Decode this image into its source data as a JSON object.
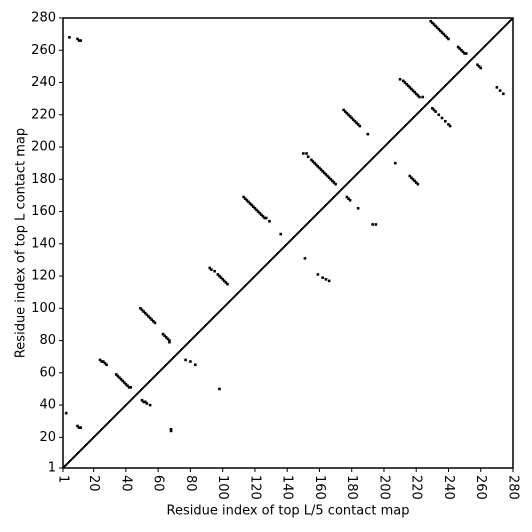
{
  "chart_data": {
    "type": "scatter",
    "x_label": "Residue index of top L/5 contact map",
    "y_label": "Residue index of top L contact map",
    "xlim": [
      1,
      280
    ],
    "ylim": [
      1,
      280
    ],
    "xticks": [
      1,
      20,
      40,
      60,
      80,
      100,
      120,
      140,
      160,
      180,
      200,
      220,
      240,
      260,
      280
    ],
    "yticks": [
      1,
      20,
      40,
      60,
      80,
      100,
      120,
      140,
      160,
      180,
      200,
      220,
      240,
      260,
      280
    ],
    "color": "#000000",
    "diagonal": true,
    "x": [
      5,
      10,
      11,
      12,
      3,
      10,
      11,
      12,
      24,
      25,
      26,
      27,
      28,
      34,
      35,
      36,
      37,
      38,
      39,
      40,
      41,
      42,
      43,
      49,
      50,
      51,
      52,
      53,
      54,
      55,
      56,
      57,
      58,
      63,
      64,
      65,
      66,
      67,
      67,
      50,
      51,
      52,
      53,
      55,
      68,
      68,
      77,
      80,
      83,
      98,
      92,
      93,
      95,
      97,
      98,
      99,
      100,
      101,
      102,
      103,
      113,
      114,
      115,
      116,
      117,
      118,
      119,
      120,
      121,
      122,
      123,
      124,
      125,
      126,
      127,
      129,
      136,
      150,
      152,
      153,
      155,
      156,
      157,
      158,
      159,
      160,
      161,
      162,
      163,
      164,
      165,
      166,
      167,
      168,
      169,
      170,
      175,
      176,
      177,
      178,
      179,
      180,
      181,
      182,
      183,
      184,
      185,
      190,
      210,
      212,
      213,
      214,
      215,
      216,
      217,
      218,
      219,
      220,
      221,
      222,
      224,
      229,
      230,
      231,
      232,
      233,
      234,
      235,
      236,
      237,
      238,
      239,
      240,
      246,
      247,
      248,
      249,
      250,
      251,
      258,
      259,
      260,
      270,
      272,
      274,
      151,
      159,
      162,
      164,
      166,
      177,
      178,
      179,
      184,
      193,
      195,
      207,
      216,
      217,
      218,
      219,
      220,
      221,
      230,
      231,
      232,
      234,
      236,
      238,
      240,
      241
    ],
    "y": [
      268,
      267,
      266,
      266,
      35,
      27,
      26,
      26,
      68,
      67,
      67,
      66,
      65,
      59,
      58,
      57,
      56,
      55,
      54,
      53,
      52,
      51,
      51,
      100,
      99,
      98,
      97,
      96,
      95,
      94,
      93,
      92,
      91,
      84,
      83,
      82,
      81,
      80,
      79,
      43,
      42,
      42,
      41,
      40,
      25,
      24,
      68,
      67,
      65,
      50,
      125,
      124,
      123,
      121,
      120,
      119,
      118,
      117,
      116,
      115,
      169,
      168,
      167,
      166,
      165,
      164,
      163,
      162,
      161,
      160,
      159,
      158,
      157,
      156,
      156,
      154,
      146,
      196,
      196,
      194,
      192,
      191,
      190,
      189,
      188,
      187,
      186,
      185,
      184,
      183,
      182,
      181,
      180,
      179,
      178,
      177,
      223,
      222,
      221,
      220,
      219,
      218,
      217,
      216,
      215,
      214,
      213,
      208,
      242,
      241,
      240,
      239,
      238,
      237,
      236,
      235,
      234,
      233,
      232,
      231,
      231,
      278,
      277,
      276,
      275,
      274,
      273,
      272,
      271,
      270,
      269,
      268,
      267,
      262,
      261,
      260,
      259,
      258,
      258,
      251,
      250,
      249,
      237,
      235,
      233,
      131,
      121,
      119,
      118,
      117,
      169,
      168,
      167,
      162,
      152,
      152,
      190,
      182,
      181,
      180,
      179,
      178,
      177,
      224,
      223,
      222,
      220,
      218,
      216,
      214,
      213
    ]
  }
}
